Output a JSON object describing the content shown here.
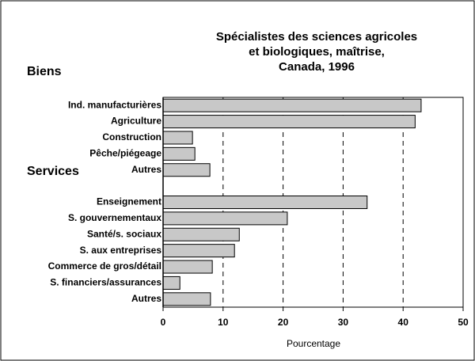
{
  "chart_data": {
    "type": "bar",
    "orientation": "horizontal",
    "title": [
      "Spécialistes des sciences agricoles",
      "et biologiques, maîtrise,",
      "Canada, 1996"
    ],
    "group_labels": [
      "Biens",
      "Services"
    ],
    "categories": [
      "Ind. manufacturières",
      "Agriculture",
      "Construction",
      "Pêche/piégeage",
      "Autres",
      null,
      "Enseignement",
      "S. gouvernementaux",
      "Santé/s. sociaux",
      "S. aux entreprises",
      "Commerce de gros/détail",
      "S. financiers/assurances",
      "Autres"
    ],
    "values": [
      43,
      42,
      4.9,
      5.3,
      7.8,
      null,
      34,
      20.7,
      12.7,
      11.9,
      8.2,
      2.8,
      7.9
    ],
    "color": "#c8c8c8",
    "xlabel": "Pourcentage",
    "xlim": [
      0,
      50
    ],
    "xticks": [
      0,
      10,
      20,
      30,
      40,
      50
    ],
    "grid": true
  }
}
